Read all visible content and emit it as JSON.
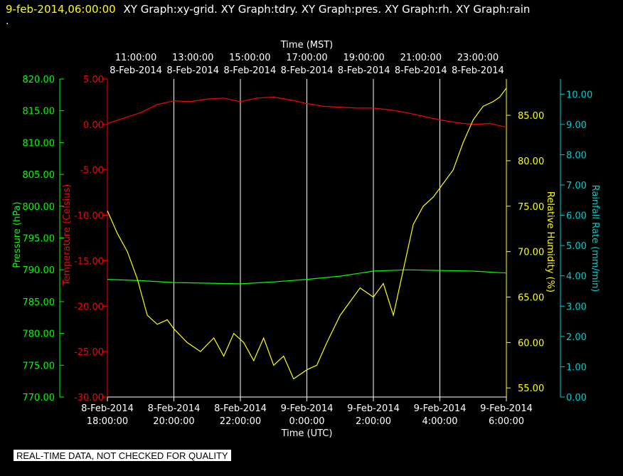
{
  "header": {
    "date": "9-feb-2014,06:00:00",
    "titles": "XY Graph:xy-grid.  XY Graph:tdry.  XY Graph:pres.  XY Graph:rh.  XY Graph:rain",
    "dot": "."
  },
  "footer": {
    "notice": "REAL-TIME DATA, NOT CHECKED FOR QUALITY"
  },
  "chart_data": {
    "type": "line",
    "top_axis": {
      "label": "Time (MST)",
      "ticks": [
        {
          "time": "11:00:00",
          "date": "8-Feb-2014"
        },
        {
          "time": "13:00:00",
          "date": "8-Feb-2014"
        },
        {
          "time": "15:00:00",
          "date": "8-Feb-2014"
        },
        {
          "time": "17:00:00",
          "date": "8-Feb-2014"
        },
        {
          "time": "19:00:00",
          "date": "8-Feb-2014"
        },
        {
          "time": "21:00:00",
          "date": "8-Feb-2014"
        },
        {
          "time": "23:00:00",
          "date": "8-Feb-2014"
        }
      ]
    },
    "bottom_axis": {
      "label": "Time (UTC)",
      "range_hours_utc": [
        18,
        30
      ],
      "ticks": [
        {
          "date": "8-Feb-2014",
          "time": "18:00:00"
        },
        {
          "date": "8-Feb-2014",
          "time": "20:00:00"
        },
        {
          "date": "8-Feb-2014",
          "time": "22:00:00"
        },
        {
          "date": "9-Feb-2014",
          "time": "0:00:00"
        },
        {
          "date": "9-Feb-2014",
          "time": "2:00:00"
        },
        {
          "date": "9-Feb-2014",
          "time": "4:00:00"
        },
        {
          "date": "9-Feb-2014",
          "time": "6:00:00"
        }
      ]
    },
    "axes": {
      "pressure": {
        "label": "Pressure (hPa)",
        "color": "#00ff00",
        "range": [
          770,
          820
        ],
        "ticks": [
          "770.00",
          "775.00",
          "780.00",
          "785.00",
          "790.00",
          "795.00",
          "800.00",
          "805.00",
          "810.00",
          "815.00",
          "820.00"
        ]
      },
      "temperature": {
        "label": "Temperature (Celsius)",
        "color": "#ff0000",
        "range": [
          -30,
          5
        ],
        "ticks": [
          "-30.00",
          "-25.00",
          "-20.00",
          "-15.00",
          "-10.00",
          "-5.00",
          "0.00",
          "5.00"
        ]
      },
      "rh": {
        "label": "Relative Humidity (%)",
        "color": "#ffff00",
        "range": [
          54,
          89
        ],
        "ticks": [
          "55.00",
          "60.00",
          "65.00",
          "70.00",
          "75.00",
          "80.00",
          "85.00"
        ]
      },
      "rain": {
        "label": "Rainfall Rate (mm/min)",
        "color": "#00cccc",
        "range": [
          0,
          10.5
        ],
        "ticks": [
          "0.00",
          "1.00",
          "2.00",
          "3.00",
          "4.00",
          "5.00",
          "6.00",
          "7.00",
          "8.00",
          "9.00",
          "10.00"
        ]
      }
    },
    "series": [
      {
        "name": "tdry",
        "axis": "temperature",
        "color": "#ff0000",
        "x": [
          18.0,
          18.5,
          19.0,
          19.5,
          20.0,
          20.5,
          21.0,
          21.5,
          22.0,
          22.5,
          23.0,
          23.5,
          24.0,
          24.5,
          25.0,
          25.5,
          26.0,
          26.5,
          27.0,
          27.5,
          28.0,
          28.5,
          29.0,
          29.5,
          30.0
        ],
        "y": [
          0.1,
          0.7,
          1.3,
          2.2,
          2.6,
          2.5,
          2.8,
          2.9,
          2.5,
          2.9,
          3.0,
          2.7,
          2.3,
          2.0,
          1.9,
          1.8,
          1.8,
          1.6,
          1.3,
          0.9,
          0.5,
          0.2,
          0.0,
          0.1,
          -0.3
        ]
      },
      {
        "name": "pres",
        "axis": "pressure",
        "color": "#00ff00",
        "x": [
          18.0,
          19.0,
          20.0,
          21.0,
          22.0,
          23.0,
          24.0,
          25.0,
          26.0,
          27.0,
          28.0,
          29.0,
          30.0
        ],
        "y": [
          788.5,
          788.3,
          788.0,
          787.9,
          787.8,
          788.1,
          788.5,
          789.0,
          789.8,
          790.0,
          789.9,
          789.8,
          789.5
        ]
      },
      {
        "name": "rh",
        "axis": "rh",
        "color": "#ffff00",
        "x": [
          18.0,
          18.3,
          18.6,
          18.9,
          19.2,
          19.5,
          19.8,
          20.0,
          20.4,
          20.8,
          21.2,
          21.5,
          21.8,
          22.1,
          22.4,
          22.7,
          23.0,
          23.3,
          23.6,
          24.0,
          24.3,
          24.6,
          25.0,
          25.3,
          25.6,
          26.0,
          26.3,
          26.6,
          26.9,
          27.2,
          27.5,
          27.8,
          28.1,
          28.4,
          28.7,
          29.0,
          29.3,
          29.6,
          29.8,
          30.0
        ],
        "y": [
          74.5,
          72.0,
          70.0,
          67.0,
          63.0,
          62.0,
          62.5,
          61.5,
          60.0,
          59.0,
          60.5,
          58.5,
          61.0,
          60.0,
          58.0,
          60.5,
          57.5,
          58.5,
          56.0,
          57.0,
          57.5,
          60.0,
          63.0,
          64.5,
          66.0,
          65.0,
          66.5,
          63.0,
          68.0,
          73.0,
          75.0,
          76.0,
          77.5,
          79.0,
          82.0,
          84.5,
          86.0,
          86.5,
          87.0,
          88.0
        ]
      },
      {
        "name": "rain",
        "axis": "rain",
        "color": "#00cccc",
        "x": [],
        "y": []
      }
    ]
  }
}
